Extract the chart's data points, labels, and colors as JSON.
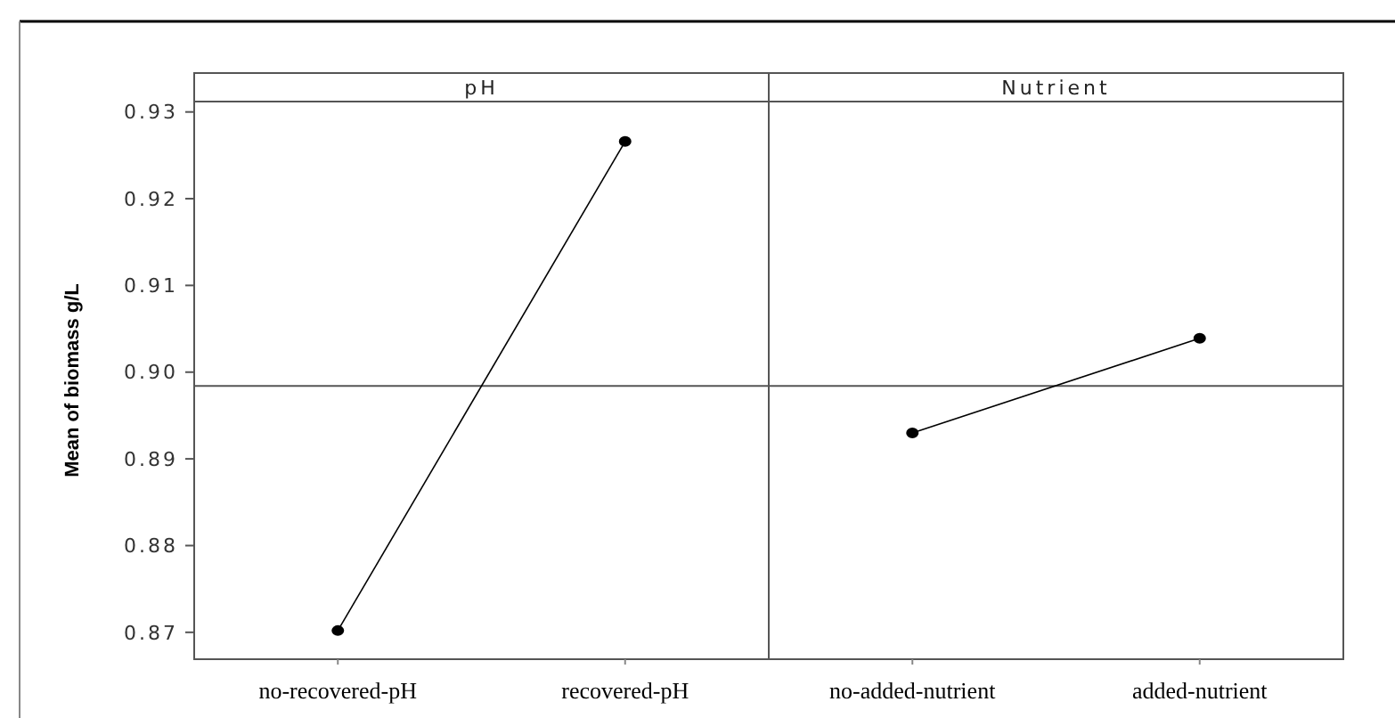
{
  "chart_data": [
    {
      "type": "line",
      "title": "pH",
      "ylabel": "Mean of biomass g/L",
      "categories": [
        "no-recovered-pH",
        "recovered-pH"
      ],
      "values": [
        0.8702,
        0.9266
      ],
      "color": "#000000",
      "marker": "circle",
      "ylim": [
        0.8669,
        0.9312
      ],
      "yticks": [
        {
          "value": 0.87,
          "label": "0.87"
        },
        {
          "value": 0.88,
          "label": "0.88"
        },
        {
          "value": 0.89,
          "label": "0.89"
        },
        {
          "value": 0.9,
          "label": "0.90"
        },
        {
          "value": 0.91,
          "label": "0.91"
        },
        {
          "value": 0.92,
          "label": "0.92"
        },
        {
          "value": 0.93,
          "label": "0.93"
        }
      ],
      "ref_lines": [
        {
          "axis": "y",
          "value": 0.8984
        }
      ]
    },
    {
      "type": "line",
      "title": "Nutrient",
      "categories": [
        "no-added-nutrient",
        "added-nutrient"
      ],
      "values": [
        0.893,
        0.9039
      ],
      "color": "#000000",
      "marker": "circle",
      "ylim": [
        0.8669,
        0.9312
      ],
      "tick_labels": "x",
      "ref_lines": [
        {
          "axis": "y",
          "value": 0.8984
        }
      ]
    }
  ]
}
